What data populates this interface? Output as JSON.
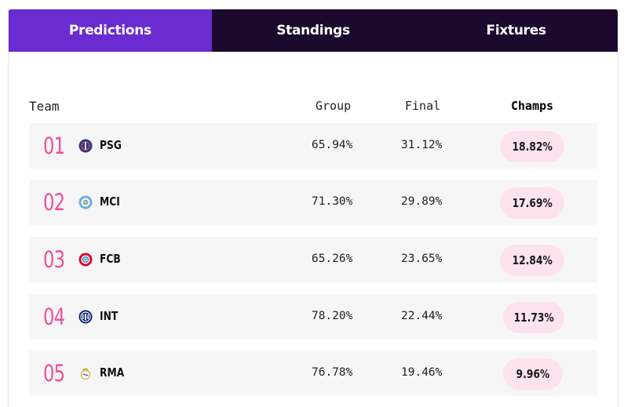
{
  "tabs": [
    {
      "label": "Predictions",
      "active": true
    },
    {
      "label": "Standings",
      "active": false
    },
    {
      "label": "Fixtures",
      "active": false
    }
  ],
  "columns": {
    "team": "Team",
    "group": "Group",
    "final": "Final",
    "champs": "Champs"
  },
  "rows": [
    {
      "rank": "01",
      "team": "PSG",
      "badge_icon": "psg-crest-icon",
      "badge_color": "#1e3d8f",
      "group": "65.94%",
      "final": "31.12%",
      "champs": "18.82%"
    },
    {
      "rank": "02",
      "team": "MCI",
      "badge_icon": "mci-crest-icon",
      "badge_color": "#6cabdd",
      "group": "71.30%",
      "final": "29.89%",
      "champs": "17.69%"
    },
    {
      "rank": "03",
      "team": "FCB",
      "badge_icon": "fcb-crest-icon",
      "badge_color": "#dc052d",
      "group": "65.26%",
      "final": "23.65%",
      "champs": "12.84%"
    },
    {
      "rank": "04",
      "team": "INT",
      "badge_icon": "int-crest-icon",
      "badge_color": "#0a1f6e",
      "group": "78.20%",
      "final": "22.44%",
      "champs": "11.73%"
    },
    {
      "rank": "05",
      "team": "RMA",
      "badge_icon": "rma-crest-icon",
      "badge_color": "#d9b44a",
      "group": "76.78%",
      "final": "19.46%",
      "champs": "9.96%"
    }
  ],
  "colors": {
    "tab_active": "#6a2bd0",
    "tab_bar": "#1c0a2e",
    "rank_pink": "#ef4f97",
    "pill_bg": "#fde3ee",
    "row_bg": "#f7f6f7"
  }
}
